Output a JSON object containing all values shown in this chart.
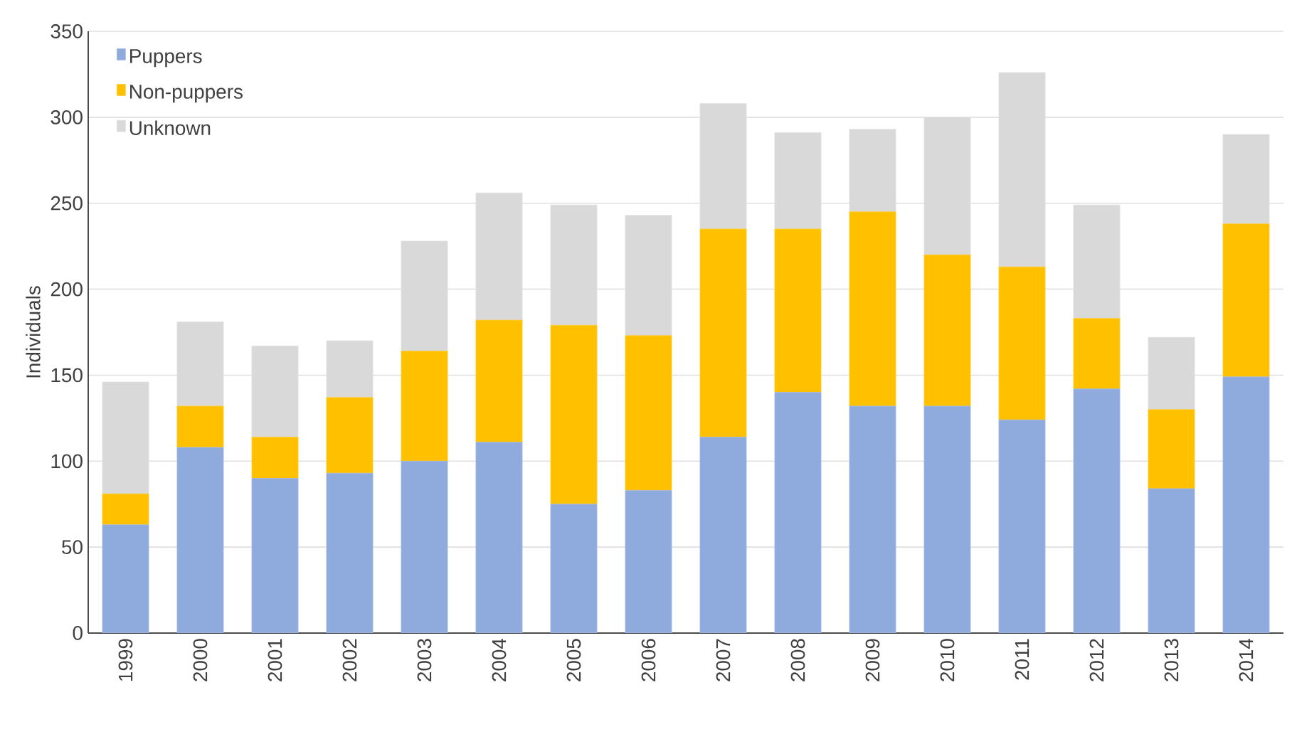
{
  "chart_data": {
    "type": "bar",
    "stacked": true,
    "ylabel": "Individuals",
    "categories": [
      "1999",
      "2000",
      "2001",
      "2002",
      "2003",
      "2004",
      "2005",
      "2006",
      "2007",
      "2008",
      "2009",
      "2010",
      "2011",
      "2012",
      "2013",
      "2014"
    ],
    "series": [
      {
        "name": "Puppers",
        "color": "#8faadc",
        "values": [
          63,
          108,
          90,
          93,
          100,
          111,
          75,
          83,
          114,
          140,
          132,
          132,
          124,
          142,
          84,
          149
        ]
      },
      {
        "name": "Non-puppers",
        "color": "#ffc000",
        "values": [
          18,
          24,
          24,
          44,
          64,
          71,
          104,
          90,
          121,
          95,
          113,
          88,
          89,
          41,
          46,
          89
        ]
      },
      {
        "name": "Unknown",
        "color": "#d9d9d9",
        "values": [
          65,
          49,
          53,
          33,
          64,
          74,
          70,
          70,
          73,
          56,
          48,
          80,
          113,
          66,
          42,
          52
        ]
      }
    ],
    "ylim": [
      0,
      350
    ],
    "yticks": [
      0,
      50,
      100,
      150,
      200,
      250,
      300,
      350
    ],
    "grid": "y",
    "legend": "top left"
  }
}
